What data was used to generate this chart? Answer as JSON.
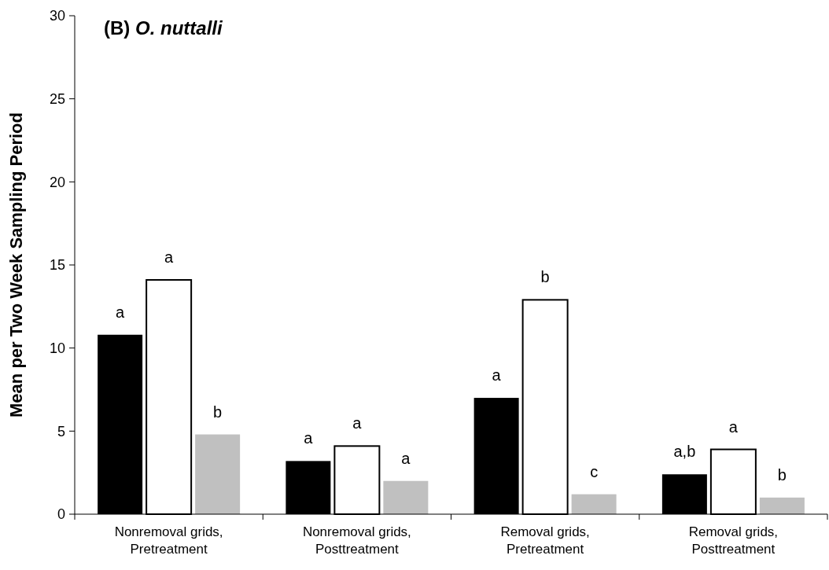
{
  "chart_data": {
    "type": "bar",
    "title": "(B) O. nuttalli",
    "ylabel": "Mean per Two Week Sampling Period",
    "categories": [
      "Nonremoval grids,\nPretreatment",
      "Nonremoval grids,\nPosttreatment",
      "Removal grids,\nPretreatment",
      "Removal grids,\nPosttreatment"
    ],
    "series": [
      {
        "color": "#000000",
        "values": [
          10.8,
          3.2,
          7.0,
          2.4
        ],
        "value_labels": [
          "a",
          "a",
          "a",
          "a,b"
        ]
      },
      {
        "color": "#ffffff",
        "values": [
          14.1,
          4.1,
          12.9,
          3.9
        ],
        "value_labels": [
          "a",
          "a",
          "b",
          "a"
        ]
      },
      {
        "color": "#c0c0c0",
        "values": [
          4.8,
          2.0,
          1.2,
          1.0
        ],
        "value_labels": [
          "b",
          "a",
          "c",
          "b"
        ]
      }
    ],
    "ylim": [
      0,
      30
    ],
    "yticks": [
      0,
      5,
      10,
      15,
      20,
      25,
      30
    ],
    "grid": false
  }
}
